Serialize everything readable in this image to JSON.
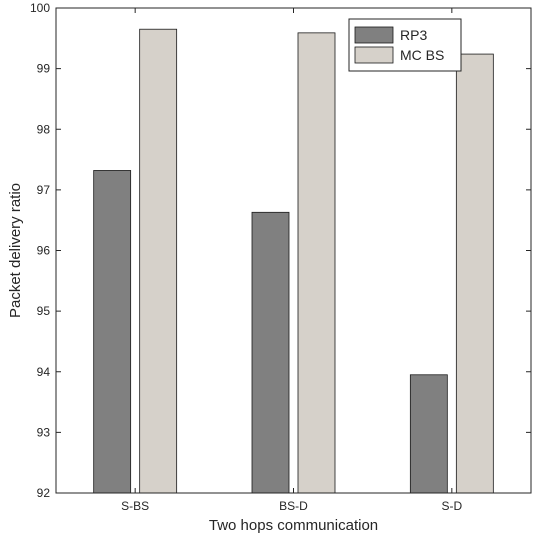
{
  "chart_data": {
    "type": "bar",
    "title": "",
    "xlabel": "Two hops communication",
    "ylabel": "Packet delivery ratio",
    "categories": [
      "S-BS",
      "BS-D",
      "S-D"
    ],
    "series": [
      {
        "name": "RP3",
        "values": [
          97.32,
          96.63,
          93.95
        ],
        "color": "#808080"
      },
      {
        "name": "MC BS",
        "values": [
          99.65,
          99.59,
          99.24
        ],
        "color": "#d6d1ca"
      }
    ],
    "ylim": [
      92,
      100
    ],
    "yticks": [
      92,
      93,
      94,
      95,
      96,
      97,
      98,
      99,
      100
    ],
    "grid": false,
    "legend_position": "top-right"
  }
}
